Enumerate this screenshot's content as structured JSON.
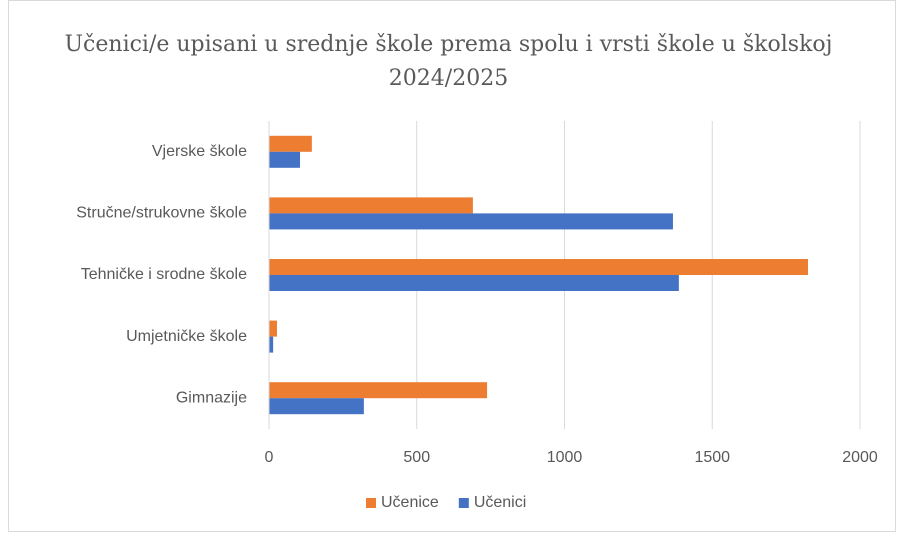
{
  "chart_data": {
    "type": "hbar",
    "title": "Učenici/e upisani u srednje škole prema spolu i vrsti škole u školskoj 2024/2025",
    "categories": [
      "Vjerske škole",
      "Stručne/strukovne škole",
      "Tehničke i srodne škole",
      "Umjetničke škole",
      "Gimnazije"
    ],
    "series": [
      {
        "name": "Učenice",
        "color": "#ed7d31",
        "values": [
          145,
          690,
          1824,
          27,
          738
        ]
      },
      {
        "name": "Učenici",
        "color": "#4472c4",
        "values": [
          105,
          1367,
          1387,
          14,
          321
        ]
      }
    ],
    "xlim": [
      0,
      2000
    ],
    "xticks": [
      0,
      500,
      1000,
      1500,
      2000
    ],
    "grid": true,
    "legend": "bottom"
  }
}
